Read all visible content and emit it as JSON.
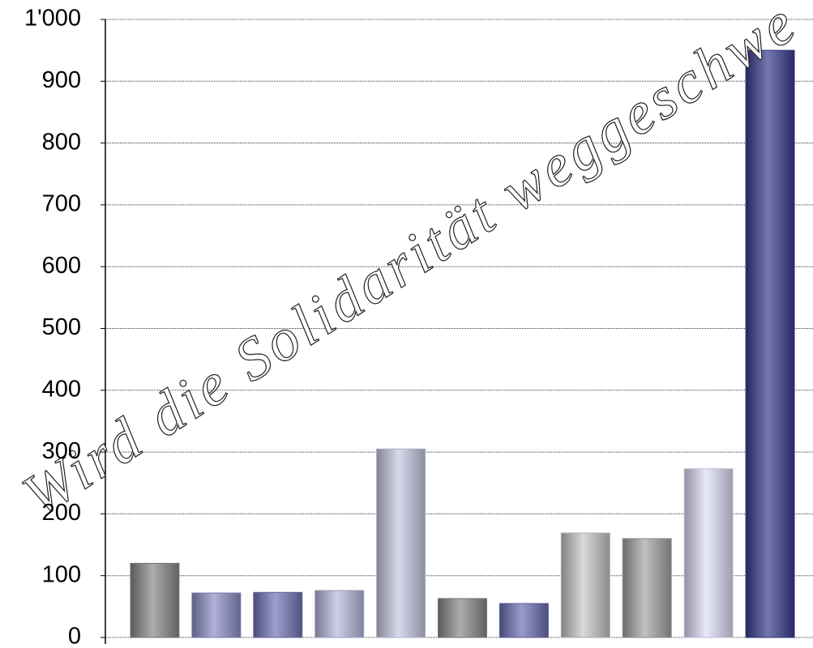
{
  "chart_data": {
    "type": "bar",
    "annotation": "Wird die Solidarität weggeschwe",
    "categories": [
      null,
      null,
      null,
      null,
      null,
      null,
      null,
      null,
      null,
      null,
      null
    ],
    "values": [
      120,
      72,
      73,
      76,
      305,
      63,
      55,
      169,
      160,
      273,
      950
    ],
    "colors": [
      "#8a8a8a",
      "#8e90c8",
      "#7476b8",
      "#b8bade",
      "#c8cae4",
      "#8a8a8a",
      "#6d70b6",
      "#c8c8c8",
      "#a6a6a6",
      "#e0e0fa",
      "#3a3c90"
    ],
    "ylim": [
      0,
      1000
    ],
    "yticks": [
      0,
      100,
      200,
      300,
      400,
      500,
      600,
      700,
      800,
      900,
      {
        "value": 1000,
        "label": "1'000"
      }
    ],
    "grid": true
  }
}
